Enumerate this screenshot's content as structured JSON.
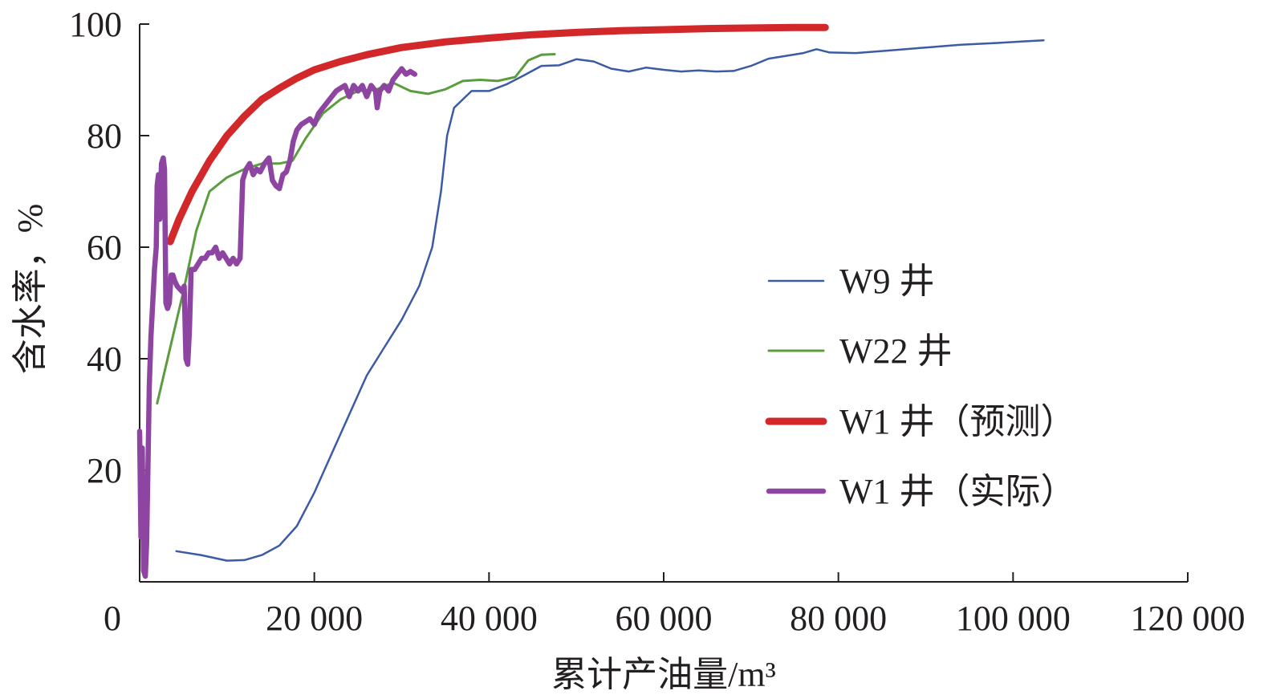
{
  "chart_data": {
    "type": "line",
    "title": "",
    "xlabel": "累计产油量/m³",
    "ylabel": "含水率，%",
    "xlim": [
      0,
      120000
    ],
    "ylim": [
      0,
      100
    ],
    "x_ticks": [
      0,
      20000,
      40000,
      60000,
      80000,
      100000,
      120000
    ],
    "x_tick_labels": [
      "0",
      "20 000",
      "40 000",
      "60 000",
      "80 000",
      "100 000",
      "120 000"
    ],
    "y_ticks": [
      20,
      40,
      60,
      80,
      100
    ],
    "y_tick_labels": [
      "20",
      "40",
      "60",
      "80",
      "100"
    ],
    "grid": false,
    "legend_position": "right",
    "series": [
      {
        "name": "W9 井",
        "color": "#3b5ba5",
        "width": 2.5,
        "points": [
          [
            4200,
            5.5
          ],
          [
            7000,
            4.8
          ],
          [
            10000,
            3.8
          ],
          [
            12000,
            3.9
          ],
          [
            14000,
            4.8
          ],
          [
            16000,
            6.5
          ],
          [
            18000,
            10
          ],
          [
            20000,
            16
          ],
          [
            22000,
            23
          ],
          [
            24000,
            30
          ],
          [
            26000,
            37
          ],
          [
            28000,
            42
          ],
          [
            30000,
            47
          ],
          [
            32000,
            53
          ],
          [
            33500,
            60
          ],
          [
            34500,
            70
          ],
          [
            35200,
            80
          ],
          [
            36000,
            85
          ],
          [
            38000,
            88
          ],
          [
            40000,
            88
          ],
          [
            42000,
            89.2
          ],
          [
            44000,
            90.8
          ],
          [
            46000,
            92.5
          ],
          [
            48000,
            92.6
          ],
          [
            50000,
            93.7
          ],
          [
            52000,
            93.3
          ],
          [
            54000,
            92
          ],
          [
            56000,
            91.5
          ],
          [
            58000,
            92.2
          ],
          [
            60000,
            91.8
          ],
          [
            62000,
            91.5
          ],
          [
            64000,
            91.7
          ],
          [
            66000,
            91.5
          ],
          [
            68000,
            91.6
          ],
          [
            70000,
            92.5
          ],
          [
            72000,
            93.8
          ],
          [
            74000,
            94.3
          ],
          [
            76000,
            94.8
          ],
          [
            77500,
            95.5
          ],
          [
            79000,
            94.9
          ],
          [
            82000,
            94.8
          ],
          [
            86000,
            95.3
          ],
          [
            90000,
            95.8
          ],
          [
            94000,
            96.3
          ],
          [
            98000,
            96.6
          ],
          [
            103500,
            97.1
          ]
        ]
      },
      {
        "name": "W22 井",
        "color": "#5b9d3e",
        "width": 3,
        "points": [
          [
            2000,
            32
          ],
          [
            3500,
            42
          ],
          [
            5000,
            52
          ],
          [
            6500,
            63
          ],
          [
            8000,
            70
          ],
          [
            10000,
            72.5
          ],
          [
            12000,
            74
          ],
          [
            14000,
            75
          ],
          [
            16000,
            75
          ],
          [
            17500,
            75.5
          ],
          [
            19000,
            79.5
          ],
          [
            21000,
            84
          ],
          [
            23000,
            86.5
          ],
          [
            25000,
            88
          ],
          [
            27000,
            88.2
          ],
          [
            29000,
            89.5
          ],
          [
            31000,
            88
          ],
          [
            33000,
            87.5
          ],
          [
            35000,
            88.3
          ],
          [
            37000,
            89.8
          ],
          [
            39000,
            90
          ],
          [
            41000,
            89.8
          ],
          [
            43000,
            90.5
          ],
          [
            44500,
            93.5
          ],
          [
            46000,
            94.5
          ],
          [
            47500,
            94.6
          ]
        ]
      },
      {
        "name": "W1 井（预测）",
        "color": "#d3282a",
        "width": 9,
        "points": [
          [
            3500,
            61
          ],
          [
            4500,
            65
          ],
          [
            6000,
            70
          ],
          [
            8000,
            75.5
          ],
          [
            10000,
            80
          ],
          [
            12000,
            83.5
          ],
          [
            14000,
            86.5
          ],
          [
            16000,
            88.5
          ],
          [
            18000,
            90.3
          ],
          [
            20000,
            91.8
          ],
          [
            23000,
            93.3
          ],
          [
            26000,
            94.5
          ],
          [
            30000,
            95.8
          ],
          [
            35000,
            96.8
          ],
          [
            40000,
            97.5
          ],
          [
            45000,
            98.1
          ],
          [
            50000,
            98.5
          ],
          [
            55000,
            98.8
          ],
          [
            60000,
            99
          ],
          [
            65000,
            99.2
          ],
          [
            70000,
            99.3
          ],
          [
            75000,
            99.4
          ],
          [
            78500,
            99.4
          ]
        ]
      },
      {
        "name": "W1 井（实际）",
        "color": "#8e44a1",
        "width": 6.5,
        "points": [
          [
            0,
            27
          ],
          [
            150,
            8
          ],
          [
            300,
            24
          ],
          [
            450,
            2
          ],
          [
            650,
            1
          ],
          [
            800,
            7
          ],
          [
            950,
            20
          ],
          [
            1100,
            35
          ],
          [
            1300,
            44
          ],
          [
            1500,
            50
          ],
          [
            1700,
            56
          ],
          [
            1900,
            60
          ],
          [
            2000,
            71
          ],
          [
            2150,
            73
          ],
          [
            2300,
            65
          ],
          [
            2500,
            75
          ],
          [
            2700,
            76
          ],
          [
            2850,
            74
          ],
          [
            3000,
            50
          ],
          [
            3200,
            49
          ],
          [
            3400,
            50
          ],
          [
            3600,
            55
          ],
          [
            3800,
            55
          ],
          [
            4000,
            54
          ],
          [
            4300,
            53
          ],
          [
            4600,
            52.5
          ],
          [
            4900,
            52
          ],
          [
            5100,
            53
          ],
          [
            5300,
            40
          ],
          [
            5500,
            39
          ],
          [
            5700,
            45
          ],
          [
            5900,
            56
          ],
          [
            6300,
            56
          ],
          [
            6700,
            57
          ],
          [
            7100,
            58
          ],
          [
            7500,
            58
          ],
          [
            7900,
            59
          ],
          [
            8300,
            59
          ],
          [
            8700,
            60
          ],
          [
            9100,
            58
          ],
          [
            9500,
            59
          ],
          [
            9900,
            58
          ],
          [
            10300,
            57
          ],
          [
            10700,
            58
          ],
          [
            11100,
            57
          ],
          [
            11500,
            58
          ],
          [
            11800,
            72
          ],
          [
            12200,
            74
          ],
          [
            12600,
            75
          ],
          [
            13000,
            73
          ],
          [
            13400,
            74
          ],
          [
            13800,
            73.5
          ],
          [
            14300,
            75
          ],
          [
            14800,
            76
          ],
          [
            15200,
            72
          ],
          [
            15600,
            71
          ],
          [
            16000,
            70.5
          ],
          [
            16400,
            73
          ],
          [
            16800,
            73.5
          ],
          [
            17200,
            75.5
          ],
          [
            17600,
            79
          ],
          [
            18000,
            81
          ],
          [
            18500,
            82
          ],
          [
            19000,
            82.5
          ],
          [
            19500,
            83
          ],
          [
            20000,
            82
          ],
          [
            20500,
            84
          ],
          [
            21000,
            85
          ],
          [
            21500,
            86
          ],
          [
            22000,
            87
          ],
          [
            22500,
            88
          ],
          [
            23000,
            88.5
          ],
          [
            23500,
            89
          ],
          [
            24000,
            87
          ],
          [
            24500,
            89
          ],
          [
            25000,
            88
          ],
          [
            25500,
            89
          ],
          [
            26000,
            87
          ],
          [
            26500,
            89
          ],
          [
            27000,
            88
          ],
          [
            27200,
            85
          ],
          [
            27500,
            88
          ],
          [
            28000,
            89
          ],
          [
            28500,
            88
          ],
          [
            29000,
            90
          ],
          [
            29500,
            91
          ],
          [
            30000,
            92
          ],
          [
            30500,
            91
          ],
          [
            31000,
            91.5
          ],
          [
            31500,
            91
          ]
        ]
      }
    ]
  }
}
